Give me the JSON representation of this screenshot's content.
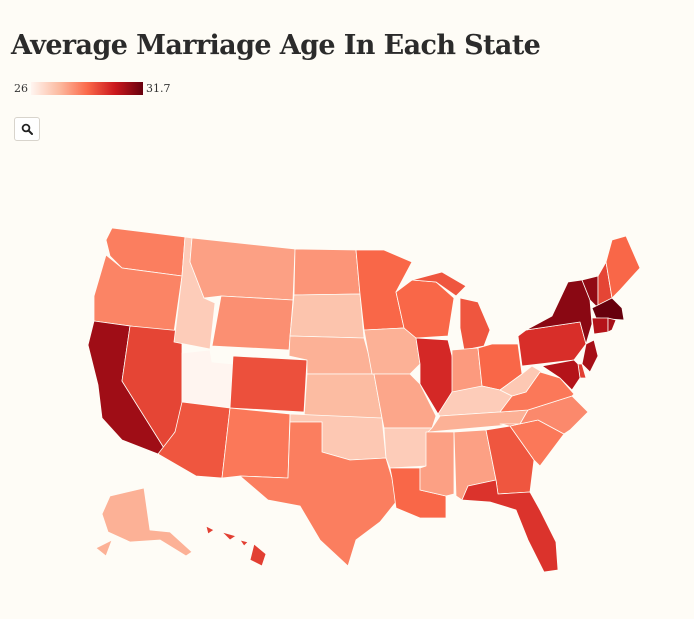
{
  "title": "Average Marriage Age In Each State",
  "legend": {
    "min_label": "26",
    "max_label": "31.7",
    "min": 26,
    "max": 31.7
  },
  "controls": {
    "zoom_icon": "search-icon"
  },
  "scale_colors": [
    "#fff5f0",
    "#fcbba1",
    "#fb6a4a",
    "#cb181d",
    "#67000d"
  ],
  "chart_data": {
    "type": "choropleth",
    "region": "United States",
    "value_range": [
      26,
      31.7
    ],
    "states": [
      {
        "code": "WA",
        "value": 28.5
      },
      {
        "code": "OR",
        "value": 28.4
      },
      {
        "code": "CA",
        "value": 30.9
      },
      {
        "code": "NV",
        "value": 29.5
      },
      {
        "code": "ID",
        "value": 27.0
      },
      {
        "code": "UT",
        "value": 26.0
      },
      {
        "code": "AZ",
        "value": 29.2
      },
      {
        "code": "MT",
        "value": 27.9
      },
      {
        "code": "WY",
        "value": 28.2
      },
      {
        "code": "CO",
        "value": 29.3
      },
      {
        "code": "NM",
        "value": 28.6
      },
      {
        "code": "ND",
        "value": 28.1
      },
      {
        "code": "SD",
        "value": 27.2
      },
      {
        "code": "NE",
        "value": 27.6
      },
      {
        "code": "KS",
        "value": 27.4
      },
      {
        "code": "OK",
        "value": 27.1
      },
      {
        "code": "TX",
        "value": 28.5
      },
      {
        "code": "MN",
        "value": 28.9
      },
      {
        "code": "IA",
        "value": 27.6
      },
      {
        "code": "MO",
        "value": 27.8
      },
      {
        "code": "AR",
        "value": 27.0
      },
      {
        "code": "LA",
        "value": 28.9
      },
      {
        "code": "WI",
        "value": 28.9
      },
      {
        "code": "IL",
        "value": 30.0
      },
      {
        "code": "MI",
        "value": 29.2
      },
      {
        "code": "IN",
        "value": 28.0
      },
      {
        "code": "OH",
        "value": 28.9
      },
      {
        "code": "KY",
        "value": 27.0
      },
      {
        "code": "TN",
        "value": 27.6
      },
      {
        "code": "MS",
        "value": 27.9
      },
      {
        "code": "AL",
        "value": 27.9
      },
      {
        "code": "GA",
        "value": 29.2
      },
      {
        "code": "FL",
        "value": 29.8
      },
      {
        "code": "SC",
        "value": 28.6
      },
      {
        "code": "NC",
        "value": 28.3
      },
      {
        "code": "VA",
        "value": 28.6
      },
      {
        "code": "WV",
        "value": 27.1
      },
      {
        "code": "PA",
        "value": 29.9
      },
      {
        "code": "NY",
        "value": 31.2
      },
      {
        "code": "NJ",
        "value": 30.8
      },
      {
        "code": "DE",
        "value": 29.6
      },
      {
        "code": "MD",
        "value": 30.6
      },
      {
        "code": "CT",
        "value": 30.6
      },
      {
        "code": "RI",
        "value": 30.8
      },
      {
        "code": "MA",
        "value": 31.7
      },
      {
        "code": "VT",
        "value": 31.1
      },
      {
        "code": "NH",
        "value": 29.5
      },
      {
        "code": "ME",
        "value": 28.9
      },
      {
        "code": "AK",
        "value": 27.6
      },
      {
        "code": "HI",
        "value": 29.6
      }
    ]
  }
}
